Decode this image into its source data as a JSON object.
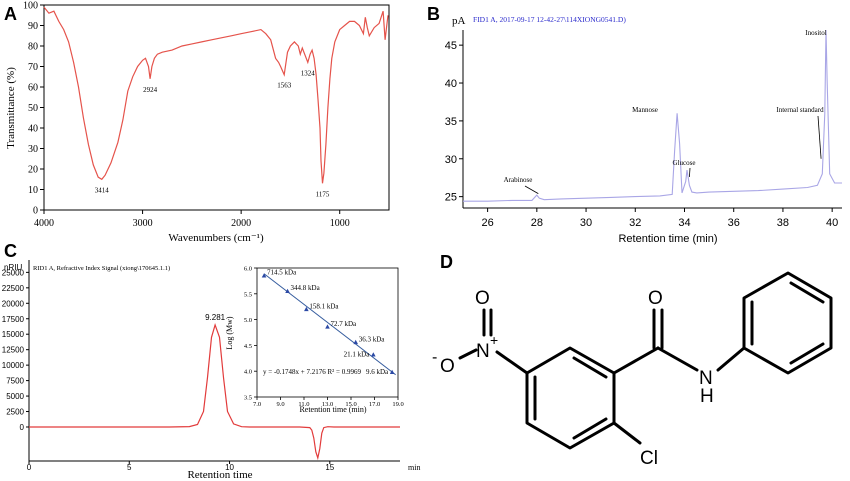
{
  "colors": {
    "ir_line": "#e5534b",
    "gc_line": "#a9a6e6",
    "gc_title": "#2a2acc",
    "gpc_line": "#e23b3b",
    "fit_line": "#355c9e",
    "marker": "#2b49a5",
    "axis": "#000000"
  },
  "panels": {
    "A": {
      "letter": "A",
      "chart_data": {
        "type": "line",
        "xlabel": "Wavenumbers (cm⁻¹)",
        "ylabel": "Transmittance (%)",
        "x_reversed": true,
        "xlim": [
          4000,
          500
        ],
        "ylim": [
          0,
          100
        ],
        "xticks": [
          4000,
          3000,
          2000,
          1000
        ],
        "yticks": [
          0,
          10,
          20,
          30,
          40,
          50,
          60,
          70,
          80,
          90,
          100
        ],
        "series": [
          {
            "x": [
              4000,
              3950,
              3900,
              3850,
              3800,
              3750,
              3700,
              3650,
              3600,
              3550,
              3500,
              3450,
              3414,
              3380,
              3320,
              3250,
              3200,
              3150,
              3100,
              3050,
              3000,
              2970,
              2940,
              2924,
              2905,
              2880,
              2850,
              2800,
              2700,
              2600,
              2500,
              2400,
              2300,
              2200,
              2100,
              2000,
              1900,
              1800,
              1750,
              1700,
              1650,
              1620,
              1600,
              1563,
              1530,
              1500,
              1460,
              1420,
              1400,
              1380,
              1324,
              1300,
              1280,
              1260,
              1240,
              1220,
              1200,
              1190,
              1175,
              1160,
              1140,
              1120,
              1100,
              1080,
              1050,
              1000,
              950,
              900,
              850,
              800,
              760,
              740,
              720,
              700,
              650,
              600,
              560,
              540,
              520,
              510
            ],
            "y": [
              99,
              96,
              97,
              92,
              88,
              82,
              72,
              60,
              45,
              32,
              22,
              16,
              15,
              17,
              23,
              33,
              44,
              58,
              65,
              70,
              73,
              74,
              70,
              64,
              70,
              74,
              76,
              77,
              78,
              80,
              81,
              82,
              83,
              84,
              85,
              86,
              87,
              88,
              86,
              83,
              74,
              72,
              70,
              66,
              77,
              80,
              82,
              80,
              76,
              79,
              72,
              76,
              78,
              74,
              66,
              54,
              40,
              24,
              13,
              18,
              32,
              50,
              64,
              74,
              82,
              88,
              90,
              92,
              92,
              90,
              86,
              94,
              89,
              85,
              89,
              91,
              97,
              83,
              91,
              95
            ]
          }
        ],
        "annotations": [
          {
            "x": 3414,
            "label": "3414"
          },
          {
            "x": 2924,
            "label": "2924"
          },
          {
            "x": 1563,
            "label": "1563"
          },
          {
            "x": 1324,
            "label": "1324"
          },
          {
            "x": 1175,
            "label": "1175"
          }
        ]
      }
    },
    "B": {
      "letter": "B",
      "chart_data": {
        "type": "line",
        "title": "FID1 A, 2017-09-17 12-42-27\\114XIONG0541.D)",
        "unit": "pA",
        "xlabel": "Retention time (min)",
        "xlim": [
          25,
          40.4
        ],
        "ylim": [
          23.5,
          47
        ],
        "xticks": [
          26,
          28,
          30,
          32,
          34,
          36,
          38,
          40
        ],
        "yticks": [
          25,
          30,
          35,
          40,
          45
        ],
        "series": [
          {
            "x": [
              25,
              26,
              27,
              27.8,
              28,
              28.1,
              28.3,
              29,
              30,
              31,
              32,
              33,
              33.5,
              33.6,
              33.7,
              33.8,
              33.9,
              34.05,
              34.1,
              34.2,
              34.3,
              34.5,
              35,
              36,
              37,
              38,
              39,
              39.4,
              39.6,
              39.7,
              39.75,
              39.8,
              39.9,
              40.1,
              40.4
            ],
            "y": [
              24.4,
              24.4,
              24.5,
              24.5,
              25.2,
              24.8,
              24.6,
              24.7,
              24.8,
              24.9,
              25.0,
              25.1,
              25.3,
              31,
              36,
              32,
              25.5,
              27,
              28.5,
              26.5,
              25.6,
              25.5,
              25.6,
              25.7,
              25.8,
              26.0,
              26.2,
              26.5,
              28,
              36,
              47,
              40,
              28,
              26.8,
              26.8
            ]
          }
        ],
        "annotations": [
          {
            "x": 28.1,
            "label": "Arabinose"
          },
          {
            "x": 33.7,
            "label": "Mannose"
          },
          {
            "x": 34.2,
            "label": "Glucose"
          },
          {
            "x": 39.6,
            "label": "Internal standard"
          },
          {
            "x": 39.75,
            "label": "Inositol"
          }
        ]
      }
    },
    "C": {
      "letter": "C",
      "chart_data": {
        "type": "line",
        "title": "RID1 A, Refractive Index Signal (xiong\\170645.1.1)",
        "unit": "nRIU",
        "xlabel": "Retention time",
        "xunit": "min",
        "xlim": [
          0,
          18.5
        ],
        "ylim": [
          -5500,
          27000
        ],
        "xticks": [
          0,
          5,
          10,
          15
        ],
        "yticks": [
          0,
          2500,
          5000,
          7500,
          10000,
          12500,
          15000,
          17500,
          20000,
          22500,
          25000
        ],
        "series": [
          {
            "x": [
              0,
              2,
              4,
              6,
              7,
              8,
              8.4,
              8.7,
              8.9,
              9.1,
              9.281,
              9.5,
              9.7,
              9.9,
              10.2,
              10.6,
              11,
              12,
              13,
              13.5,
              14,
              14.1,
              14.2,
              14.3,
              14.4,
              14.5,
              14.6,
              14.7,
              14.9,
              15.2,
              16,
              17,
              18.5
            ],
            "y": [
              0,
              0,
              0,
              0,
              0,
              60,
              400,
              2500,
              8000,
              14500,
              16500,
              14500,
              8000,
              2500,
              500,
              50,
              0,
              0,
              0,
              0,
              -100,
              -500,
              -1800,
              -4000,
              -5000,
              -3500,
              -1000,
              -100,
              50,
              0,
              0,
              0,
              0
            ]
          }
        ],
        "annotations": [
          {
            "x": 9.281,
            "label": "9.281"
          }
        ]
      },
      "inset": {
        "chart_data": {
          "type": "scatter",
          "xlabel": "Retention time (min)",
          "ylabel": "Log (Mw)",
          "xlim": [
            7,
            19
          ],
          "ylim": [
            3.5,
            6.0
          ],
          "xticks": [
            "7.0",
            "9.0",
            "11.0",
            "13.0",
            "15.0",
            "17.0",
            "19.0"
          ],
          "yticks": [
            "3.5",
            "4.0",
            "4.5",
            "5.0",
            "5.5",
            "6.0"
          ],
          "points": [
            {
              "x": 7.6,
              "y": 5.85,
              "label": "714.5 kDa"
            },
            {
              "x": 9.6,
              "y": 5.55,
              "label": "344.8 kDa"
            },
            {
              "x": 11.2,
              "y": 5.2,
              "label": "158.1 kDa"
            },
            {
              "x": 13.0,
              "y": 4.86,
              "label": "72.7 kDa"
            },
            {
              "x": 15.4,
              "y": 4.56,
              "label": "36.3 kDa"
            },
            {
              "x": 16.9,
              "y": 4.32,
              "label": "21.1 kDa"
            },
            {
              "x": 18.5,
              "y": 3.98,
              "label": "9.6 kDa"
            }
          ],
          "fit": {
            "slope": -0.1748,
            "intercept": 7.2176
          },
          "equation": "y = -0.1748x + 7.2176 R² = 0.9969"
        }
      }
    },
    "D": {
      "letter": "D",
      "atoms": {
        "minus": "-",
        "oxygen_ester": "O",
        "oxygen_top": "O",
        "nitrogen": "N",
        "plus": "+",
        "carbonyl_o": "O",
        "amide_n": "N",
        "amide_h": "H",
        "chlorine": "Cl"
      }
    }
  }
}
